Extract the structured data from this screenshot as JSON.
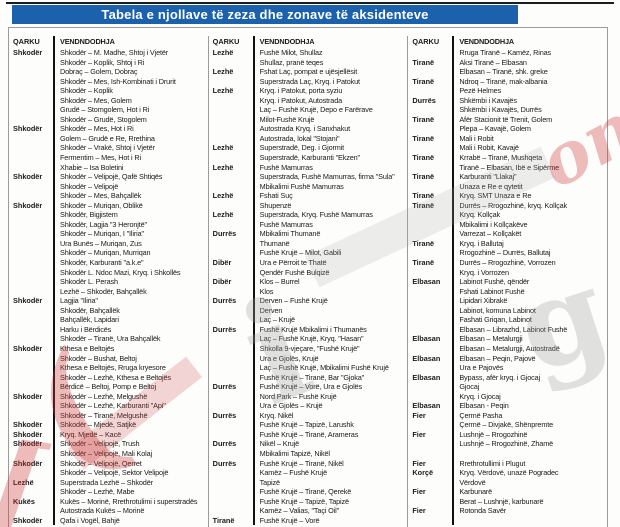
{
  "title": "Tabela e njollave të zeza dhe zonave të aksidenteve",
  "columns": {
    "district": "QARKU",
    "location": "VENDNDODHJA"
  },
  "accent": {
    "title_bg": "#1b61ac",
    "title_text": "#ffffff",
    "divider": "#101010",
    "box_border": "#9b9b9b"
  },
  "watermark": {
    "red_fragments": [
      "om",
      "(",
      "["
    ],
    "gray_fragments": [
      "g",
      "i"
    ]
  },
  "groups": [
    {
      "rows": [
        {
          "q": "Shkodër",
          "v": "Shkodër – M. Madhe, Shtoj i Vjetër"
        },
        {
          "q": "",
          "v": "Shkodër – Koplik, Shtoj i Ri"
        },
        {
          "q": "",
          "v": "Dobraç – Golem, Dobraç"
        },
        {
          "q": "",
          "v": "Shkodër – Mes, Ish-Kombinati i Drurit"
        },
        {
          "q": "",
          "v": "Shkodër – Koplik"
        },
        {
          "q": "",
          "v": "Shkodër – Mes, Golem"
        },
        {
          "q": "",
          "v": "Grudë – Stomgolem, Hot i Ri"
        },
        {
          "q": "",
          "v": "Shkodër – Grudë, Stogolem"
        },
        {
          "q": "Shkodër",
          "v": "Shkodër – Mes, Hot i Ri"
        },
        {
          "q": "",
          "v": "Golem – Grudë e Re, Rrethina"
        },
        {
          "q": "",
          "v": "Shkodër – Vrakë, Shtoj i Vjetër"
        },
        {
          "q": "",
          "v": "Fermentim – Mes, Hot i Ri"
        },
        {
          "q": "",
          "v": "Xhabie – Isa Boletini"
        },
        {
          "q": "Shkodër",
          "v": "Shkodër – Velipojë, Qafë Shtiqës"
        },
        {
          "q": "",
          "v": "Shkodër – Velipojë"
        },
        {
          "q": "",
          "v": "Shkodër – Mes, Bahçallëk"
        },
        {
          "q": "Shkodër",
          "v": "Shkodër – Muriqan, Oblikë"
        },
        {
          "q": "",
          "v": "Shkodër, Bigjistem"
        },
        {
          "q": "",
          "v": "Shkodër, Lagjia \"3 Heronjtë\""
        },
        {
          "q": "",
          "v": "Shkodër – Muriqan, I \"Iliria\""
        },
        {
          "q": "",
          "v": "Ura Bunës – Muriqan, Zus"
        },
        {
          "q": "",
          "v": "Shkodër – Muriqan, Murriqan"
        },
        {
          "q": "",
          "v": "Shkodër, Karburanti \"a.k.e\""
        },
        {
          "q": "",
          "v": "Shkodër L. Ndoc Mazi, Kryq. i Shkollës"
        },
        {
          "q": "",
          "v": "Shkodër L. Perash"
        },
        {
          "q": "",
          "v": "Lezhë – Shkodër, Bahçallëk"
        },
        {
          "q": "Shkodër",
          "v": "Lagjia \"Iliria\""
        },
        {
          "q": "",
          "v": "Shkodër, Bahçallëk"
        },
        {
          "q": "",
          "v": "Bahçallëk, Lapidari"
        },
        {
          "q": "",
          "v": "Harku i Bërdicës"
        },
        {
          "q": "",
          "v": "Shkodër – Tiranë, Ura Bahçallëk"
        },
        {
          "q": "Shkodër",
          "v": "Kthesa e Beltojës"
        },
        {
          "q": "",
          "v": "Shkodër – Bushat, Beltoj"
        },
        {
          "q": "",
          "v": "Kthesa e Beltojës, Rruga kryesore"
        },
        {
          "q": "",
          "v": "Shkodër – Lezhë, Kthesa e Beltojës"
        },
        {
          "q": "",
          "v": "Bërdicë – Beltoj, Pomp e Beltoj"
        },
        {
          "q": "Shkodër",
          "v": "Shkodër – Lezhë, Melgushë"
        },
        {
          "q": "",
          "v": "Shkodër – Lezhë, Karburanti \"Api\""
        },
        {
          "q": "",
          "v": "Shkodër – Tiranë, Melgushë"
        },
        {
          "q": "Shkodër",
          "v": "Shkodër – Mjedë, Satjkë"
        },
        {
          "q": "Shkodër",
          "v": "Kryq. Mjedë – Kacë"
        },
        {
          "q": "Shkodër",
          "v": "Shkodër – Velipojë, Trush"
        },
        {
          "q": "",
          "v": "Shkodër – Velipojë, Mali Kolaj"
        },
        {
          "q": "Shkodër",
          "v": "Shkodër – Velipojë, Qerret"
        },
        {
          "q": "",
          "v": "Shkodër – Velipojë, Sektor Velipojë"
        },
        {
          "q": "Lezhë",
          "v": "Superstrada Lezhë – Shkodër"
        },
        {
          "q": "",
          "v": "Shkodër – Lezhë, Mabe"
        },
        {
          "q": "Kukës",
          "v": "Kukës – Morinë, Rrethrotulimi i superstradës"
        },
        {
          "q": "",
          "v": "Autostrada Kukës – Morinë"
        },
        {
          "q": "Shkodër",
          "v": "Qafa i Vogël, Bahjë"
        }
      ]
    },
    {
      "rows": [
        {
          "q": "Lezhë",
          "v": "Fushë Milot, Shullaz"
        },
        {
          "q": "",
          "v": "Shullaz, pranë teqes"
        },
        {
          "q": "Lezhë",
          "v": "Fshat Laç, pompat e ujësjellësit"
        },
        {
          "q": "",
          "v": "Superstrada Laç, Kryq. i Patokut"
        },
        {
          "q": "Lezhë",
          "v": "Kryq. i Patokut, porta syziu"
        },
        {
          "q": "",
          "v": "Kryq. i Patokut, Autostrada"
        },
        {
          "q": "",
          "v": "Laç – Fushë Krujë, Depo e Farërave"
        },
        {
          "q": "",
          "v": "Milot-Fushë Krujë"
        },
        {
          "q": "",
          "v": "Autostrada Kryq. i Sanxhakut"
        },
        {
          "q": "",
          "v": "Autostrada, lokal \"Stojani\""
        },
        {
          "q": "Lezhë",
          "v": "Superstradë, Deg. i Gjormit"
        },
        {
          "q": "",
          "v": "Superstradë, Karburanti \"Ekzen\""
        },
        {
          "q": "Lezhë",
          "v": "Fushë Mamurras"
        },
        {
          "q": "",
          "v": "Superstrada, Fushë Mamurras, firma \"Sula\""
        },
        {
          "q": "",
          "v": "Mbikalimi Fushë Mamurras"
        },
        {
          "q": "Lezhë",
          "v": "Fshati Suç"
        },
        {
          "q": "",
          "v": "Shupenzë"
        },
        {
          "q": "Lezhë",
          "v": "Superstrada, Kryq. Fushë Mamurras"
        },
        {
          "q": "",
          "v": "Fushë Mamurras"
        },
        {
          "q": "Durrës",
          "v": "Mbikalimi Thumanë"
        },
        {
          "q": "",
          "v": "Thumanë"
        },
        {
          "q": "",
          "v": "Fushë Krujë – Milot, Gabili"
        },
        {
          "q": "Dibër",
          "v": "Ura e Përroit te Thatë"
        },
        {
          "q": "",
          "v": "Qendër Fushë Bulqizë"
        },
        {
          "q": "Dibër",
          "v": "Klos – Burrel"
        },
        {
          "q": "",
          "v": "Klos"
        },
        {
          "q": "Durrës",
          "v": "Derven – Fushë Krujë"
        },
        {
          "q": "",
          "v": "Derven"
        },
        {
          "q": "",
          "v": "Laç – Krujë"
        },
        {
          "q": "Durrës",
          "v": "Fushë Krujë Mbikalimi i Thumanës"
        },
        {
          "q": "",
          "v": "Laç – Fushë Krujë, Kryq. \"Hasan\""
        },
        {
          "q": "",
          "v": "Shkolla 9-vjeçare, \"Fushë Krujë\""
        },
        {
          "q": "",
          "v": "Ura e Gjolës, Krujë"
        },
        {
          "q": "",
          "v": "Laç – Fushë Krujë, Mbikalimi Fushë Krujë"
        },
        {
          "q": "",
          "v": "Fushë Krujë – Tiranë, Bar \"Gjoka\""
        },
        {
          "q": "Durrës",
          "v": "Fushë Krujë – Vorë, Ura e Gjolës"
        },
        {
          "q": "",
          "v": "Nord Park – Fushë Krujë"
        },
        {
          "q": "",
          "v": "Ura e Gjolës – Krujë"
        },
        {
          "q": "Durrës",
          "v": "Kryq. Nikël"
        },
        {
          "q": "",
          "v": "Fushë Krujë – Tapizë, Larushk"
        },
        {
          "q": "",
          "v": "Fushë Krujë – Tiranë, Arameras"
        },
        {
          "q": "Durrës",
          "v": "Nikël – Krujë"
        },
        {
          "q": "",
          "v": "Mbikalimi Tapizë, Nikël"
        },
        {
          "q": "Durrës",
          "v": "Fushë Krujë – Tiranë, Nikël"
        },
        {
          "q": "",
          "v": "Kamëz – Fushë Krujë"
        },
        {
          "q": "",
          "v": "Tapizë"
        },
        {
          "q": "",
          "v": "Fushë Krujë – Tiranë, Qerekë"
        },
        {
          "q": "",
          "v": "Fushë Krujë – Tapizë, Tapizë"
        },
        {
          "q": "",
          "v": "Kamëz – Valias, \"Taçi Oil\""
        },
        {
          "q": "Tiranë",
          "v": "Fushë Krujë – Vorë"
        }
      ]
    },
    {
      "rows": [
        {
          "q": "",
          "v": "Rruga Tiranë – Kamëz, Rinas"
        },
        {
          "q": "Tiranë",
          "v": "Aksi Tiranë – Elbasan"
        },
        {
          "q": "",
          "v": "Elbasan – Tiranë, shk. greke"
        },
        {
          "q": "Tiranë",
          "v": "Ndroq – Tiranë, mak-albania"
        },
        {
          "q": "",
          "v": "Pezë Helmes"
        },
        {
          "q": "Durrës",
          "v": "Shkëmbi i Kavajës"
        },
        {
          "q": "",
          "v": "Shkëmbi i Kavajës, Durrës"
        },
        {
          "q": "Tiranë",
          "v": "Afër Stacionit të Trenit, Golem"
        },
        {
          "q": "",
          "v": "Plepa – Kavajë, Golem"
        },
        {
          "q": "Tiranë",
          "v": "Mali i Robit"
        },
        {
          "q": "",
          "v": "Mali i Robit, Kavajë"
        },
        {
          "q": "Tiranë",
          "v": "Krrabë – Tiranë, Mushqeta"
        },
        {
          "q": "",
          "v": "Tiranë – Elbasan, Ibë e Sipërme"
        },
        {
          "q": "Tiranë",
          "v": "Karburanti \"Llakaj\""
        },
        {
          "q": "",
          "v": "Unaza e Re e qytetit"
        },
        {
          "q": "Tiranë",
          "v": "Kryq. SMT Unaza e Re"
        },
        {
          "q": "Tiranë",
          "v": "Durrës – Rrogozhinë, kryq. Kollçak"
        },
        {
          "q": "",
          "v": "Kryq. Kollçak"
        },
        {
          "q": "",
          "v": "Mbikalimi i Kollçakëve"
        },
        {
          "q": "",
          "v": "Varrezat – Kollçakët"
        },
        {
          "q": "Tiranë",
          "v": "Kryq. i Ballutaj"
        },
        {
          "q": "",
          "v": "Rrogozhinë – Durrës, Ballutaj"
        },
        {
          "q": "Tiranë",
          "v": "Durrës – Rrogozhinë, Vorrozen"
        },
        {
          "q": "",
          "v": "Kryq. i Vorrozen"
        },
        {
          "q": "Elbasan",
          "v": "Labinot Fushë, qëndër"
        },
        {
          "q": "",
          "v": "Fshati Labinot Fushë"
        },
        {
          "q": "",
          "v": "Lipidari Xibrakë"
        },
        {
          "q": "",
          "v": "Labinot, komuna Labinot"
        },
        {
          "q": "",
          "v": "Fashati Griqan, Labinot"
        },
        {
          "q": "",
          "v": "Elbasan – Librazhd, Labinot Fushë"
        },
        {
          "q": "Elbasan",
          "v": "Elbasan – Metalurgji"
        },
        {
          "q": "",
          "v": "Elbasan – Metalurgji, Autostradë"
        },
        {
          "q": "Elbasan",
          "v": "Elbasan – Peqin, Pajovë"
        },
        {
          "q": "",
          "v": "Ura e Pajovës"
        },
        {
          "q": "Elbasan",
          "v": "Bypass, afër kryq. i Gjocaj"
        },
        {
          "q": "",
          "v": "Gjocaj"
        },
        {
          "q": "",
          "v": "Kryq. i Gjocaj"
        },
        {
          "q": "Elbasan",
          "v": "Elbasan - Peqin"
        },
        {
          "q": "Fier",
          "v": "Çermë Pasha"
        },
        {
          "q": "",
          "v": "Çermë – Divjakë, Shënpremte"
        },
        {
          "q": "Fier",
          "v": "Lushnjë – Rrogozhinë"
        },
        {
          "q": "",
          "v": "Lushnjë – Rrogozhinë, Zhamë"
        },
        {
          "q": "",
          "v": ""
        },
        {
          "q": "Fier",
          "v": "Rrethrotullimi i Plugut"
        },
        {
          "q": "Korçë",
          "v": "Kryq. Vërdovë, unazë Pogradec"
        },
        {
          "q": "",
          "v": "Vërdovë"
        },
        {
          "q": "Fier",
          "v": "Karbunarë"
        },
        {
          "q": "",
          "v": "Berat – Lushnjë, karbunarë"
        },
        {
          "q": "Fier",
          "v": "Rotonda Savër"
        },
        {
          "q": "",
          "v": ""
        }
      ]
    }
  ]
}
